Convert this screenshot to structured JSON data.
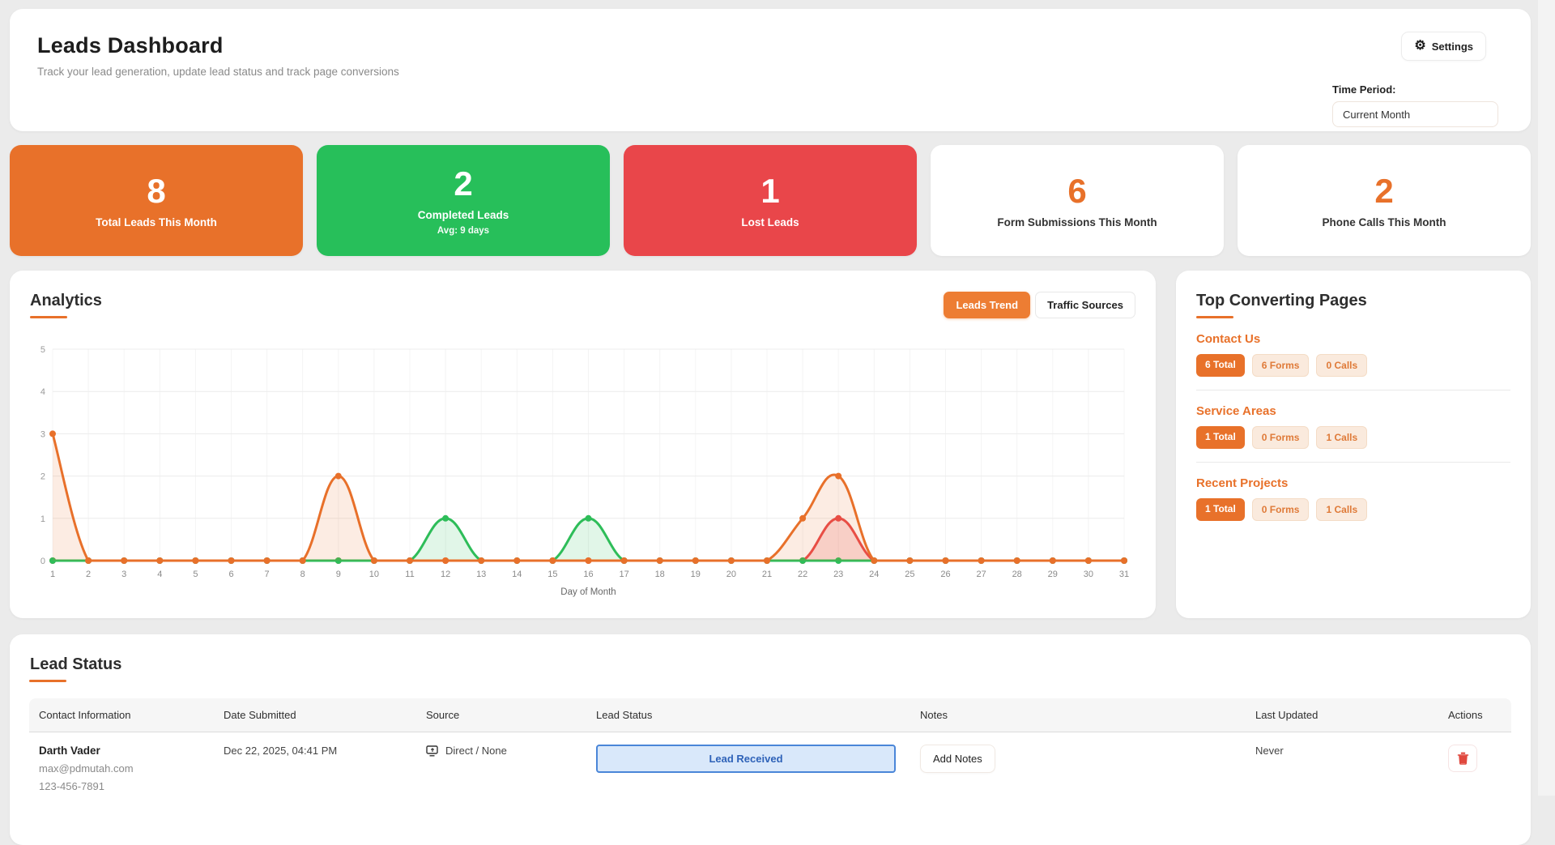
{
  "header": {
    "title": "Leads Dashboard",
    "subtitle": "Track your lead generation, update lead status and track page conversions",
    "settings_label": "Settings",
    "time_period_label": "Time Period:",
    "time_period_value": "Current Month"
  },
  "stats": [
    {
      "value": "8",
      "label": "Total Leads This Month",
      "sub": "",
      "bg": "#E8712A"
    },
    {
      "value": "2",
      "label": "Completed Leads",
      "sub": "Avg: 9 days",
      "bg": "#27BF5A"
    },
    {
      "value": "1",
      "label": "Lost Leads",
      "sub": "",
      "bg": "#E9464A"
    },
    {
      "value": "6",
      "label": "Form Submissions This Month",
      "sub": "",
      "accent": "#E8712A"
    },
    {
      "value": "2",
      "label": "Phone Calls This Month",
      "sub": "",
      "accent": "#E8712A"
    }
  ],
  "analytics": {
    "title": "Analytics",
    "tabs": [
      {
        "label": "Leads Trend",
        "active": true
      },
      {
        "label": "Traffic Sources",
        "active": false
      }
    ]
  },
  "chart_data": {
    "type": "line",
    "title": "Leads Trend",
    "xlabel": "Day of Month",
    "ylabel": "",
    "x": [
      1,
      2,
      3,
      4,
      5,
      6,
      7,
      8,
      9,
      10,
      11,
      12,
      13,
      14,
      15,
      16,
      17,
      18,
      19,
      20,
      21,
      22,
      23,
      24,
      25,
      26,
      27,
      28,
      29,
      30,
      31
    ],
    "ylim": [
      0,
      5
    ],
    "yticks": [
      0,
      1,
      2,
      3,
      4,
      5
    ],
    "grid": true,
    "legend_position": "none",
    "series": [
      {
        "name": "Lost Leads",
        "color": "#E84A4A",
        "fill": "rgba(232,74,74,0.18)",
        "values": [
          0,
          0,
          0,
          0,
          0,
          0,
          0,
          0,
          0,
          0,
          0,
          0,
          0,
          0,
          0,
          0,
          0,
          0,
          0,
          0,
          0,
          0,
          1,
          0,
          0,
          0,
          0,
          0,
          0,
          0,
          0
        ]
      },
      {
        "name": "Completed Leads",
        "color": "#2EBD59",
        "fill": "rgba(46,189,89,0.14)",
        "values": [
          0,
          0,
          0,
          0,
          0,
          0,
          0,
          0,
          0,
          0,
          0,
          1,
          0,
          0,
          0,
          1,
          0,
          0,
          0,
          0,
          0,
          0,
          0,
          0,
          0,
          0,
          0,
          0,
          0,
          0,
          0
        ]
      },
      {
        "name": "Total Leads",
        "color": "#E8702A",
        "fill": "rgba(232,112,42,0.13)",
        "values": [
          3,
          0,
          0,
          0,
          0,
          0,
          0,
          0,
          2,
          0,
          0,
          0,
          0,
          0,
          0,
          0,
          0,
          0,
          0,
          0,
          0,
          1,
          2,
          0,
          0,
          0,
          0,
          0,
          0,
          0,
          0
        ]
      }
    ]
  },
  "top_pages": {
    "title": "Top Converting Pages",
    "pages": [
      {
        "name": "Contact Us",
        "total": "6 Total",
        "forms": "6 Forms",
        "calls": "0 Calls"
      },
      {
        "name": "Service Areas",
        "total": "1 Total",
        "forms": "0 Forms",
        "calls": "1 Calls"
      },
      {
        "name": "Recent Projects",
        "total": "1 Total",
        "forms": "0 Forms",
        "calls": "1 Calls"
      }
    ]
  },
  "lead_status": {
    "title": "Lead Status",
    "columns": [
      "Contact Information",
      "Date Submitted",
      "Source",
      "Lead Status",
      "Notes",
      "Last Updated",
      "Actions"
    ],
    "rows": [
      {
        "name": "Darth Vader",
        "email": "max@pdmutah.com",
        "phone": "123-456-7891",
        "date": "Dec 22, 2025, 04:41 PM",
        "source": "Direct / None",
        "status": "Lead Received",
        "notes_button": "Add Notes",
        "last_updated": "Never"
      }
    ]
  },
  "colors": {
    "accent_orange": "#E8712A",
    "stat_green": "#27BF5A",
    "stat_red": "#E9464A",
    "status_button_border": "#4A86D8",
    "status_button_bg": "#D9E8FA",
    "status_button_text": "#2E62B8",
    "trash_red": "#E0483E",
    "page_background": "#EBEBEB"
  }
}
